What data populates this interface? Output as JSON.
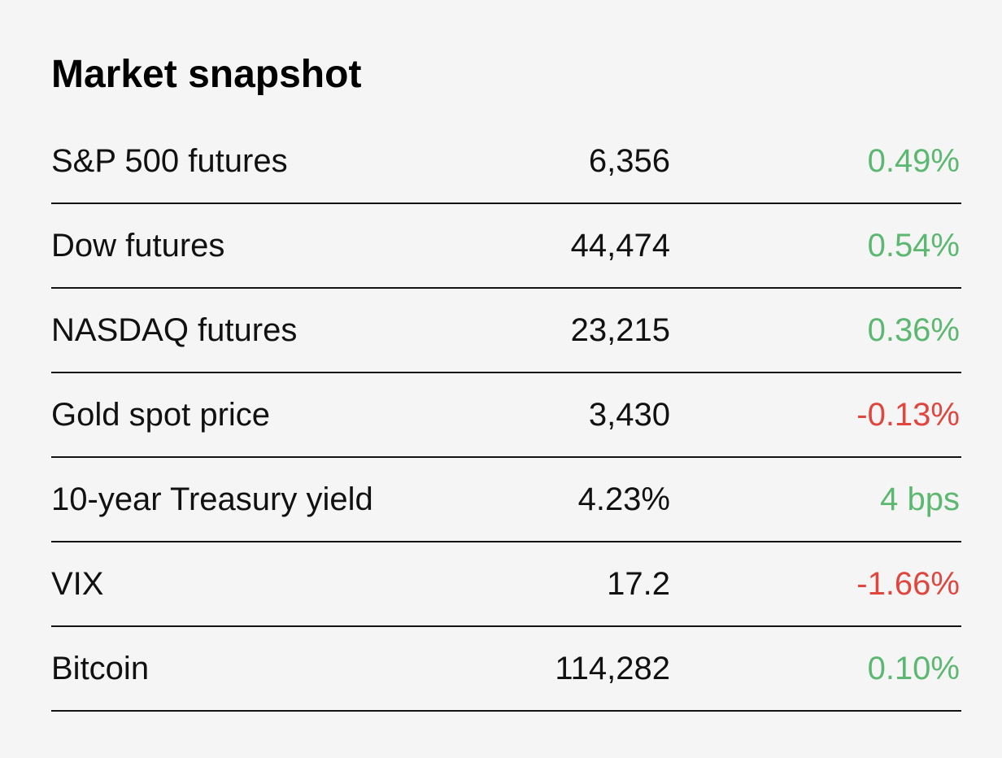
{
  "title": "Market snapshot",
  "rows": [
    {
      "name": "S&P 500 futures",
      "value": "6,356",
      "change": "0.49%",
      "direction": "up"
    },
    {
      "name": "Dow futures",
      "value": "44,474",
      "change": "0.54%",
      "direction": "up"
    },
    {
      "name": "NASDAQ futures",
      "value": "23,215",
      "change": "0.36%",
      "direction": "up"
    },
    {
      "name": "Gold spot price",
      "value": "3,430",
      "change": "-0.13%",
      "direction": "down"
    },
    {
      "name": "10-year Treasury yield",
      "value": "4.23%",
      "change": "4 bps",
      "direction": "up"
    },
    {
      "name": "VIX",
      "value": "17.2",
      "change": "-1.66%",
      "direction": "down"
    },
    {
      "name": "Bitcoin",
      "value": "114,282",
      "change": "0.10%",
      "direction": "up"
    }
  ],
  "colors": {
    "positive": "#5cb870",
    "negative": "#e0463e",
    "text": "#111111",
    "background": "#f5f5f5"
  }
}
